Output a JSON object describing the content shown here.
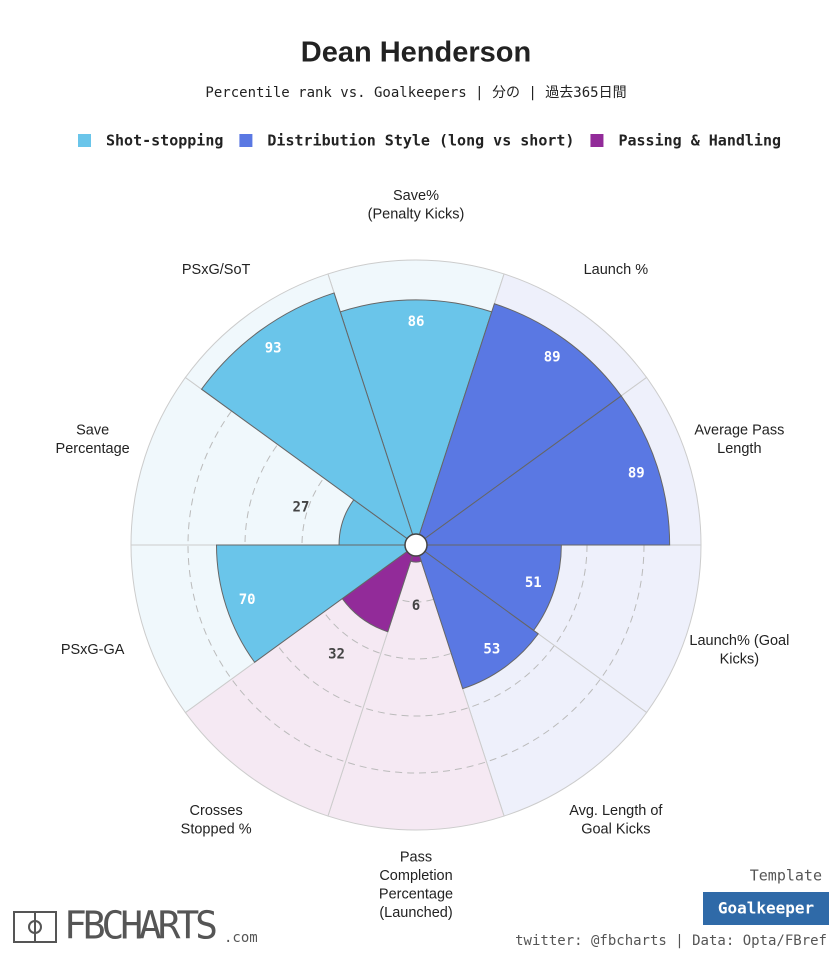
{
  "chart_data": {
    "type": "polar-bar",
    "title": "Dean Henderson",
    "subtitle": "Percentile rank vs. Goalkeepers | 分の | 過去365日間",
    "series": [
      {
        "name": "Shot-stopping",
        "color": "#6ac5ea",
        "background": "#f0f8fc"
      },
      {
        "name": "Distribution Style (long vs short)",
        "color": "#5a78e3",
        "background": "#eef0fb"
      },
      {
        "name": "Passing & Handling",
        "color": "#922b99",
        "background": "#f5e9f3"
      }
    ],
    "categories": [
      "Save%\n(Penalty Kicks)",
      "Launch %",
      "Average Pass\nLength",
      "Launch% (Goal\nKicks)",
      "Avg. Length of\nGoal Kicks",
      "Pass\nCompletion\nPercentage\n(Launched)",
      "Crosses\nStopped %",
      "PSxG-GA",
      "Save\nPercentage",
      "PSxG/SoT"
    ],
    "values": [
      86,
      89,
      89,
      51,
      53,
      6,
      32,
      70,
      27,
      93
    ],
    "group": [
      0,
      1,
      1,
      1,
      1,
      2,
      2,
      0,
      0,
      0
    ],
    "rlim": [
      0,
      100
    ],
    "rticks": [
      20,
      40,
      60,
      80
    ],
    "grid": true
  },
  "footer": {
    "template_label": "Template",
    "template": "Goalkeeper",
    "credit": "twitter: @fbcharts | Data: Opta/FBref",
    "logo": "FBCHARTS",
    "logo_suffix": ".com"
  }
}
